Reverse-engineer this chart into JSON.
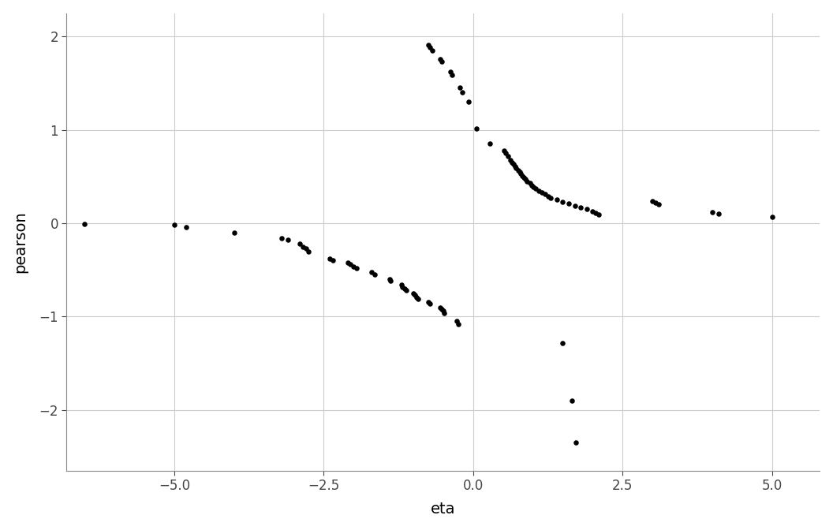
{
  "title": "",
  "xlabel": "eta",
  "ylabel": "pearson",
  "xlim": [
    -6.8,
    5.8
  ],
  "ylim": [
    -2.65,
    2.25
  ],
  "xticks": [
    -5.0,
    -2.5,
    0.0,
    2.5,
    5.0
  ],
  "yticks": [
    -2,
    -1,
    0,
    1,
    2
  ],
  "background_color": "#ffffff",
  "grid_color": "#cccccc",
  "dot_color": "#000000",
  "dot_size": 22,
  "eta": [
    -6.5,
    -5.0,
    -4.8,
    -4.0,
    -3.2,
    -3.1,
    -2.9,
    -2.85,
    -2.8,
    -2.75,
    -2.4,
    -2.35,
    -2.1,
    -2.05,
    -2.0,
    -1.95,
    -1.7,
    -1.65,
    -1.4,
    -1.38,
    -1.2,
    -1.18,
    -1.15,
    -1.12,
    -1.0,
    -0.98,
    -0.95,
    -0.92,
    -0.75,
    -0.72,
    -0.55,
    -0.52,
    -0.5,
    -0.48,
    -0.28,
    -0.25,
    -0.75,
    -0.72,
    -0.68,
    -0.55,
    -0.52,
    -0.38,
    -0.35,
    -0.22,
    -0.18,
    -0.08,
    0.05,
    0.28,
    0.52,
    0.55,
    0.58,
    0.62,
    0.65,
    0.68,
    0.7,
    0.72,
    0.75,
    0.78,
    0.8,
    0.82,
    0.85,
    0.88,
    0.9,
    0.95,
    0.98,
    1.0,
    1.05,
    1.1,
    1.15,
    1.2,
    1.25,
    1.3,
    1.4,
    1.5,
    1.6,
    1.7,
    1.8,
    1.9,
    2.0,
    2.05,
    2.1,
    1.5,
    1.65,
    1.72,
    3.0,
    3.05,
    3.1,
    4.0,
    4.1,
    5.0
  ],
  "pearson": [
    -0.01,
    -0.02,
    -0.04,
    -0.1,
    -0.16,
    -0.18,
    -0.22,
    -0.25,
    -0.27,
    -0.3,
    -0.38,
    -0.4,
    -0.42,
    -0.44,
    -0.46,
    -0.48,
    -0.52,
    -0.55,
    -0.6,
    -0.62,
    -0.66,
    -0.68,
    -0.7,
    -0.72,
    -0.75,
    -0.77,
    -0.79,
    -0.81,
    -0.84,
    -0.86,
    -0.9,
    -0.92,
    -0.94,
    -0.96,
    -1.05,
    -1.08,
    1.91,
    1.88,
    1.85,
    1.76,
    1.73,
    1.62,
    1.59,
    1.45,
    1.4,
    1.3,
    1.01,
    0.85,
    0.78,
    0.75,
    0.72,
    0.68,
    0.65,
    0.63,
    0.61,
    0.59,
    0.57,
    0.55,
    0.53,
    0.51,
    0.49,
    0.47,
    0.45,
    0.43,
    0.41,
    0.39,
    0.37,
    0.35,
    0.33,
    0.31,
    0.29,
    0.27,
    0.25,
    0.23,
    0.21,
    0.19,
    0.17,
    0.15,
    0.13,
    0.11,
    0.09,
    -1.28,
    -1.9,
    -2.35,
    0.24,
    0.22,
    0.2,
    0.12,
    0.1,
    0.07
  ]
}
